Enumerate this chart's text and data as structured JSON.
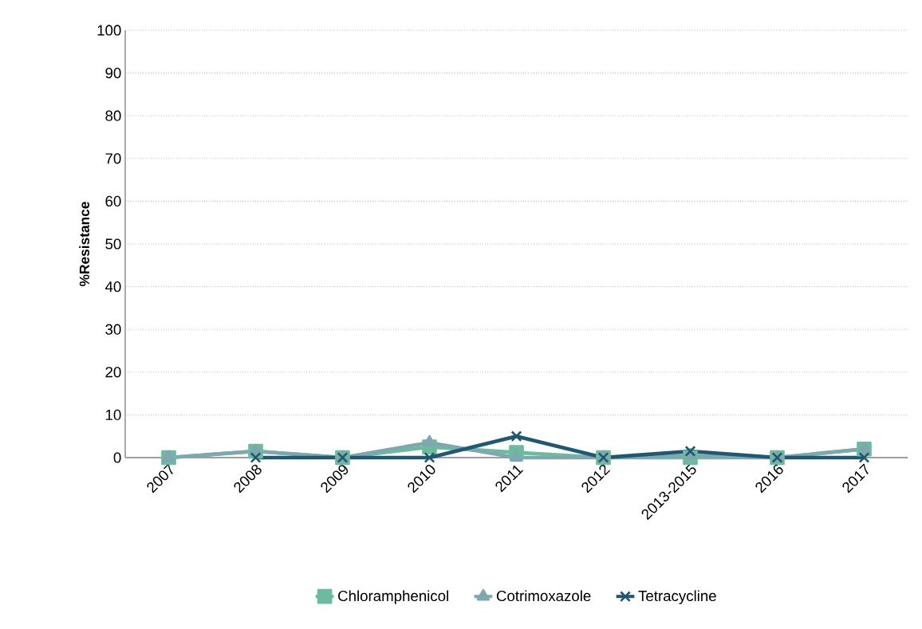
{
  "chart_data": {
    "type": "line",
    "ylabel": "%Resistance",
    "categories": [
      "2007",
      "2008",
      "2009",
      "2010",
      "2011",
      "2012",
      "2013-2015",
      "2016",
      "2017"
    ],
    "series": [
      {
        "name": "Chloramphenicol",
        "color": "#6dbb9e",
        "marker": "square",
        "values": [
          0,
          1.5,
          0,
          2.5,
          1.2,
          0,
          0,
          0,
          2
        ]
      },
      {
        "name": "Cotrimoxazole",
        "color": "#7fa7b0",
        "marker": "triangle",
        "values": [
          0,
          1.5,
          0,
          3.5,
          0,
          0,
          0.5,
          0,
          2
        ]
      },
      {
        "name": "Tetracycline",
        "color": "#1f5870",
        "marker": "cross",
        "values": [
          null,
          0,
          0,
          0,
          5,
          0,
          1.5,
          0,
          0
        ]
      }
    ],
    "ylim": [
      0,
      100
    ],
    "yticks": [
      0,
      10,
      20,
      30,
      40,
      50,
      60,
      70,
      80,
      90,
      100
    ],
    "grid": "y",
    "legend": "bottom",
    "line_style": "solid"
  }
}
